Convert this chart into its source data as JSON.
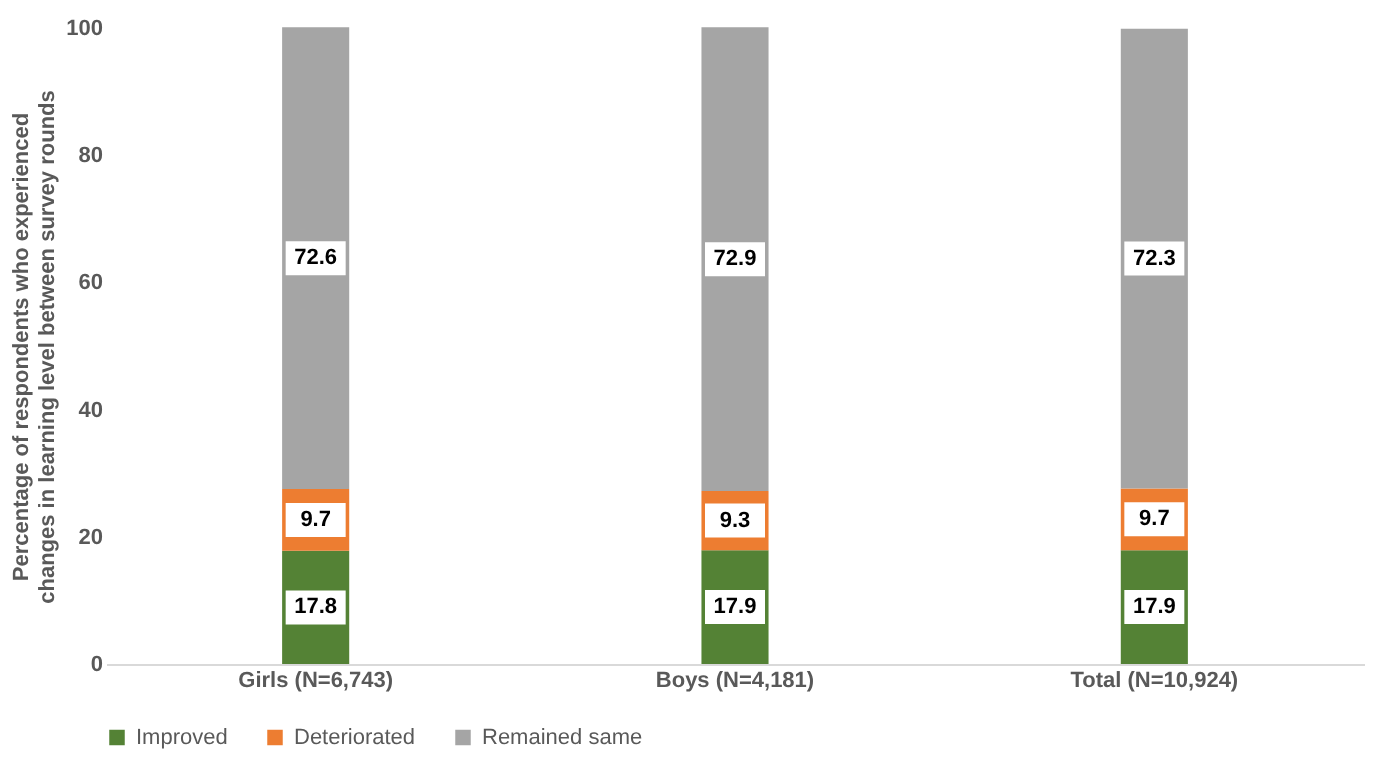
{
  "chart_data": {
    "type": "bar",
    "stacked": true,
    "ylabel": "Percentage of respondents who experienced changes in learning level between survey rounds",
    "categories": [
      "Girls (N=6,743)",
      "Boys (N=4,181)",
      "Total (N=10,924)"
    ],
    "series": [
      {
        "name": "Improved",
        "color": "#548235",
        "values": [
          17.8,
          17.9,
          17.9
        ]
      },
      {
        "name": "Deteriorated",
        "color": "#ed7d31",
        "values": [
          9.7,
          9.3,
          9.7
        ]
      },
      {
        "name": "Remained same",
        "color": "#a5a5a5",
        "values": [
          72.6,
          72.9,
          72.3
        ]
      }
    ],
    "ylim": [
      0,
      100
    ],
    "yticks": [
      0,
      20,
      40,
      60,
      80,
      100
    ],
    "data_labels": true,
    "legend": "bottom",
    "grid": false
  }
}
